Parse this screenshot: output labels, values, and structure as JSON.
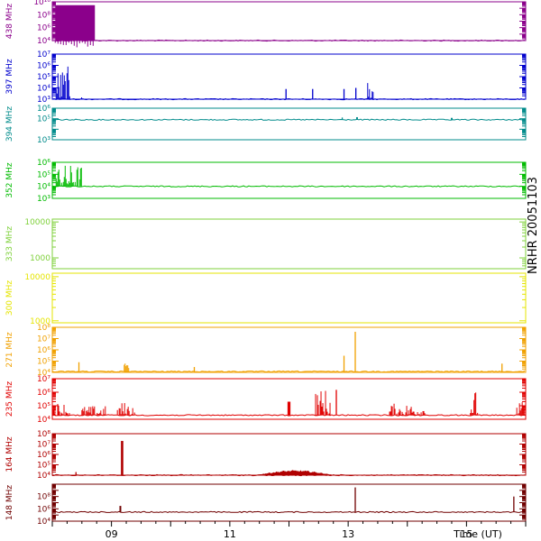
{
  "chart_data": {
    "type": "line",
    "title": "NRHR 20051103",
    "x_axis": {
      "label": "Time (UT)",
      "range": [
        8.0,
        16.0
      ],
      "ticks": [
        {
          "value": 9,
          "label": "09"
        },
        {
          "value": 11,
          "label": "11"
        },
        {
          "value": 13,
          "label": "13"
        },
        {
          "value": 15,
          "label": "15"
        }
      ]
    },
    "panels": [
      {
        "name": "438 MHz",
        "color": "#8b008b",
        "scale": "log",
        "ylim": [
          10000,
          10000000000
        ],
        "tick_labels": [
          {
            "v": 10000,
            "label": "10⁴"
          },
          {
            "v": 1000000,
            "label": "10⁶"
          },
          {
            "v": 100000000,
            "label": "10⁸"
          },
          {
            "v": 10000000000,
            "label": "10¹⁰"
          }
        ],
        "baseline": 10000,
        "bursts": [
          {
            "start": 8.05,
            "end": 8.72,
            "peak": 3000000000,
            "style": "band",
            "low": 10000
          }
        ]
      },
      {
        "name": "397 MHz",
        "color": "#0000cd",
        "scale": "log",
        "ylim": [
          1000,
          10000000
        ],
        "tick_labels": [
          {
            "v": 1000,
            "label": "10³"
          },
          {
            "v": 10000,
            "label": "10⁴"
          },
          {
            "v": 100000,
            "label": "10⁵"
          },
          {
            "v": 1000000,
            "label": "10⁶"
          },
          {
            "v": 10000000,
            "label": "10⁷"
          }
        ],
        "baseline": 1000,
        "bursts": [
          {
            "start": 8.05,
            "end": 8.3,
            "peak": 800000,
            "style": "spiky"
          },
          {
            "start": 8.45,
            "end": 8.5,
            "peak": 20000,
            "style": "spiky"
          },
          {
            "start": 11.95,
            "end": 11.97,
            "peak": 8000,
            "style": "spike"
          },
          {
            "start": 12.4,
            "end": 12.42,
            "peak": 8000,
            "style": "spike"
          },
          {
            "start": 12.93,
            "end": 12.95,
            "peak": 8000,
            "style": "spike"
          },
          {
            "start": 13.13,
            "end": 13.15,
            "peak": 10000,
            "style": "spike"
          },
          {
            "start": 13.33,
            "end": 13.43,
            "peak": 60000,
            "style": "spiky"
          }
        ]
      },
      {
        "name": "394 MHz",
        "color": "#008b8b",
        "scale": "log",
        "ylim": [
          1000,
          1000000
        ],
        "tick_labels": [
          {
            "v": 1000,
            "label": "10³"
          },
          {
            "v": 100000,
            "label": "10⁵"
          },
          {
            "v": 1000000,
            "label": "10⁶"
          }
        ],
        "baseline": 80000,
        "bursts": [
          {
            "start": 12.9,
            "end": 12.92,
            "peak": 130000,
            "style": "spike"
          },
          {
            "start": 13.15,
            "end": 13.18,
            "peak": 140000,
            "style": "spike"
          },
          {
            "start": 14.75,
            "end": 14.78,
            "peak": 120000,
            "style": "spike"
          }
        ]
      },
      {
        "name": "352 MHz",
        "color": "#00bb00",
        "scale": "log",
        "ylim": [
          1000,
          1000000
        ],
        "tick_labels": [
          {
            "v": 1000,
            "label": "10³"
          },
          {
            "v": 10000,
            "label": "10⁴"
          },
          {
            "v": 100000,
            "label": "10⁵"
          },
          {
            "v": 1000000,
            "label": "10⁶"
          }
        ],
        "baseline": 10000,
        "bursts": [
          {
            "start": 8.05,
            "end": 8.5,
            "peak": 700000,
            "style": "spiky"
          }
        ]
      },
      {
        "name": "333 MHz",
        "color": "#7fd13b",
        "scale": "log",
        "ylim": [
          500,
          12000
        ],
        "tick_labels": [
          {
            "v": 1000,
            "label": "1000"
          },
          {
            "v": 10000,
            "label": "10000"
          }
        ],
        "baseline": 0,
        "bursts": []
      },
      {
        "name": "300 MHz",
        "color": "#e5e500",
        "scale": "log",
        "ylim": [
          900,
          12000
        ],
        "tick_labels": [
          {
            "v": 1000,
            "label": "1000"
          },
          {
            "v": 10000,
            "label": "10000"
          }
        ],
        "baseline": 0,
        "bursts": []
      },
      {
        "name": "271 MHz",
        "color": "#f0a000",
        "scale": "log",
        "ylim": [
          10000,
          100000000
        ],
        "tick_labels": [
          {
            "v": 10000,
            "label": "10⁴"
          },
          {
            "v": 100000,
            "label": "10⁵"
          },
          {
            "v": 1000000,
            "label": "10⁶"
          },
          {
            "v": 10000000,
            "label": "10⁷"
          },
          {
            "v": 100000000,
            "label": "10⁸"
          }
        ],
        "baseline": 12000,
        "bursts": [
          {
            "start": 8.45,
            "end": 8.47,
            "peak": 80000,
            "style": "spike"
          },
          {
            "start": 9.2,
            "end": 9.3,
            "peak": 200000,
            "style": "spiky"
          },
          {
            "start": 10.4,
            "end": 10.42,
            "peak": 30000,
            "style": "spike"
          },
          {
            "start": 12.93,
            "end": 12.95,
            "peak": 300000,
            "style": "spike"
          },
          {
            "start": 13.12,
            "end": 13.14,
            "peak": 40000000,
            "style": "spike"
          },
          {
            "start": 15.6,
            "end": 15.62,
            "peak": 60000,
            "style": "spike"
          }
        ]
      },
      {
        "name": "235 MHz",
        "color": "#e00000",
        "scale": "log",
        "ylim": [
          10000,
          10000000
        ],
        "tick_labels": [
          {
            "v": 10000,
            "label": "10⁴"
          },
          {
            "v": 100000,
            "label": "10⁵"
          },
          {
            "v": 1000000,
            "label": "10⁶"
          },
          {
            "v": 10000000,
            "label": "10⁷"
          }
        ],
        "baseline": 20000,
        "bursts": [
          {
            "start": 8.0,
            "end": 8.3,
            "peak": 200000,
            "style": "spiky"
          },
          {
            "start": 8.5,
            "end": 8.9,
            "peak": 100000,
            "style": "spiky"
          },
          {
            "start": 9.1,
            "end": 9.4,
            "peak": 200000,
            "style": "spiky"
          },
          {
            "start": 12.0,
            "end": 12.05,
            "peak": 200000,
            "style": "spike"
          },
          {
            "start": 12.45,
            "end": 12.7,
            "peak": 2000000,
            "style": "spiky"
          },
          {
            "start": 12.8,
            "end": 12.82,
            "peak": 1500000,
            "style": "spike"
          },
          {
            "start": 13.7,
            "end": 14.3,
            "peak": 150000,
            "style": "spiky"
          },
          {
            "start": 15.05,
            "end": 15.2,
            "peak": 1500000,
            "style": "spiky"
          },
          {
            "start": 15.85,
            "end": 16.0,
            "peak": 200000,
            "style": "spiky"
          }
        ]
      },
      {
        "name": "164 MHz",
        "color": "#b00000",
        "scale": "log",
        "ylim": [
          10000,
          100000000
        ],
        "tick_labels": [
          {
            "v": 10000,
            "label": "10⁴"
          },
          {
            "v": 100000,
            "label": "10⁵"
          },
          {
            "v": 1000000,
            "label": "10⁶"
          },
          {
            "v": 10000000,
            "label": "10⁷"
          },
          {
            "v": 100000000,
            "label": "10⁸"
          }
        ],
        "baseline": 10000,
        "bursts": [
          {
            "start": 8.4,
            "end": 8.42,
            "peak": 20000,
            "style": "spike"
          },
          {
            "start": 9.18,
            "end": 9.22,
            "peak": 20000000,
            "style": "spike"
          },
          {
            "start": 11.45,
            "end": 12.75,
            "peak": 30000,
            "style": "hump"
          }
        ]
      },
      {
        "name": "148 MHz",
        "color": "#700000",
        "scale": "log",
        "ylim": [
          10000,
          10000000000
        ],
        "tick_labels": [
          {
            "v": 10000,
            "label": "10⁴"
          },
          {
            "v": 1000000,
            "label": "10⁶"
          },
          {
            "v": 100000000,
            "label": "10⁸"
          }
        ],
        "baseline": 300000,
        "bursts": [
          {
            "start": 9.15,
            "end": 9.18,
            "peak": 3000000,
            "style": "spike"
          },
          {
            "start": 13.12,
            "end": 13.14,
            "peak": 3000000000,
            "style": "spike"
          },
          {
            "start": 15.8,
            "end": 15.82,
            "peak": 100000000,
            "style": "spike"
          }
        ]
      }
    ]
  }
}
